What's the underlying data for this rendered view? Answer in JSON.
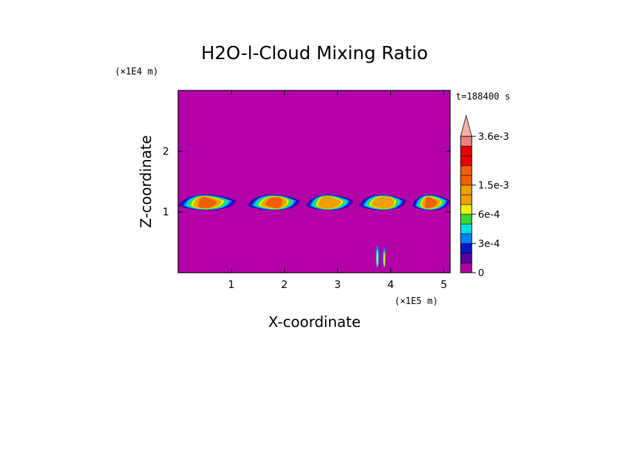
{
  "chart_data": {
    "type": "heatmap",
    "title": "H2O-l-Cloud Mixing Ratio",
    "time_label": "t=188400 s",
    "xlabel": "X-coordinate",
    "ylabel": "Z-coordinate",
    "x_unit": "(×1E5 m)",
    "y_unit": "(×1E4 m)",
    "xlim": [
      0,
      5.12
    ],
    "ylim": [
      0,
      3.0
    ],
    "x_ticks": [
      1,
      2,
      3,
      4,
      5
    ],
    "x_tick_labels": [
      "1",
      "2",
      "3",
      "4",
      "5"
    ],
    "y_ticks": [
      1,
      2
    ],
    "y_tick_labels": [
      "1",
      "2"
    ],
    "background_color": "#b400a8",
    "colorbar": {
      "levels": [
        0,
        0.0001,
        0.0002,
        0.0003,
        0.0004,
        0.0005,
        0.0006,
        0.0009,
        0.0012,
        0.0015,
        0.0018,
        0.0021,
        0.0024,
        0.0027,
        0.0036
      ],
      "colors": [
        "#b400a8",
        "#5a00a0",
        "#0018c8",
        "#0080ff",
        "#00e0e0",
        "#38d838",
        "#f0f000",
        "#f0a000",
        "#f0a000",
        "#f06000",
        "#f06000",
        "#e80000",
        "#e80000",
        "#f08080"
      ],
      "extend_max_color": "#f4b0a8",
      "labels": [
        {
          "value": 0,
          "text": "0"
        },
        {
          "value": 0.0003,
          "text": "3e-4"
        },
        {
          "value": 0.0006,
          "text": "6e-4"
        },
        {
          "value": 0.0015,
          "text": "1.5e-3"
        },
        {
          "value": 0.0036,
          "text": "3.6e-3"
        }
      ]
    },
    "cloud_layer": {
      "z_center": 1.15,
      "z_thickness": 0.3,
      "cells": [
        {
          "x": [
            0.0,
            1.1
          ],
          "peak": 0.0018
        },
        {
          "x": [
            1.3,
            2.3
          ],
          "peak": 0.0015
        },
        {
          "x": [
            2.4,
            3.3
          ],
          "peak": 0.0012
        },
        {
          "x": [
            3.4,
            4.3
          ],
          "peak": 0.0009
        },
        {
          "x": [
            4.4,
            5.12
          ],
          "peak": 0.0018
        }
      ],
      "small_features": [
        {
          "x": 3.75,
          "z": [
            0.08,
            0.45
          ]
        },
        {
          "x": 3.88,
          "z": [
            0.08,
            0.42
          ]
        }
      ]
    }
  }
}
